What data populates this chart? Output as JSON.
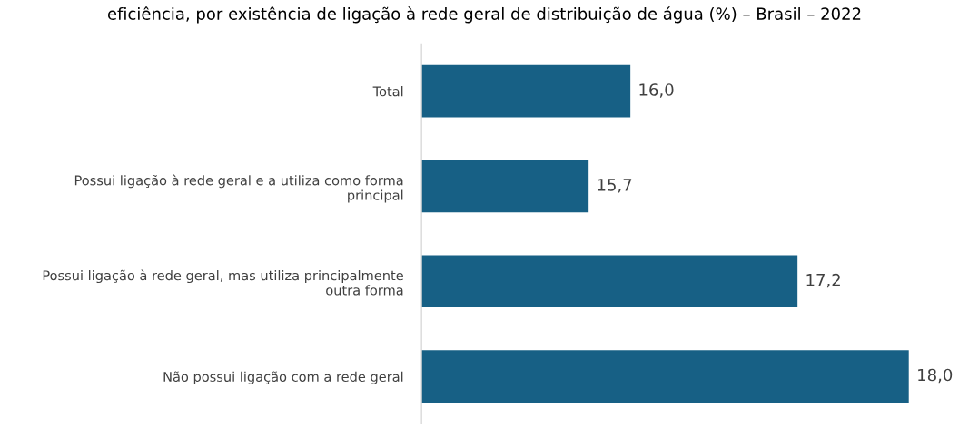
{
  "chart_data": {
    "type": "bar",
    "orientation": "horizontal",
    "title": "eficiência, por existência de ligação à rede geral de distribuição de água (%) – Brasil – 2022",
    "categories": [
      "Total",
      "Possui ligação à rede geral e a utiliza como forma\nprincipal",
      "Possui ligação à rede geral, mas utiliza principalmente\noutra forma",
      "Não possui ligação com a rede geral"
    ],
    "values": [
      16.0,
      15.7,
      17.2,
      18.0
    ],
    "value_labels": [
      "16,0",
      "15,7",
      "17,2",
      "18,0"
    ],
    "color": "#176085",
    "xlim": [
      14.5,
      18.0
    ],
    "grid": false
  }
}
